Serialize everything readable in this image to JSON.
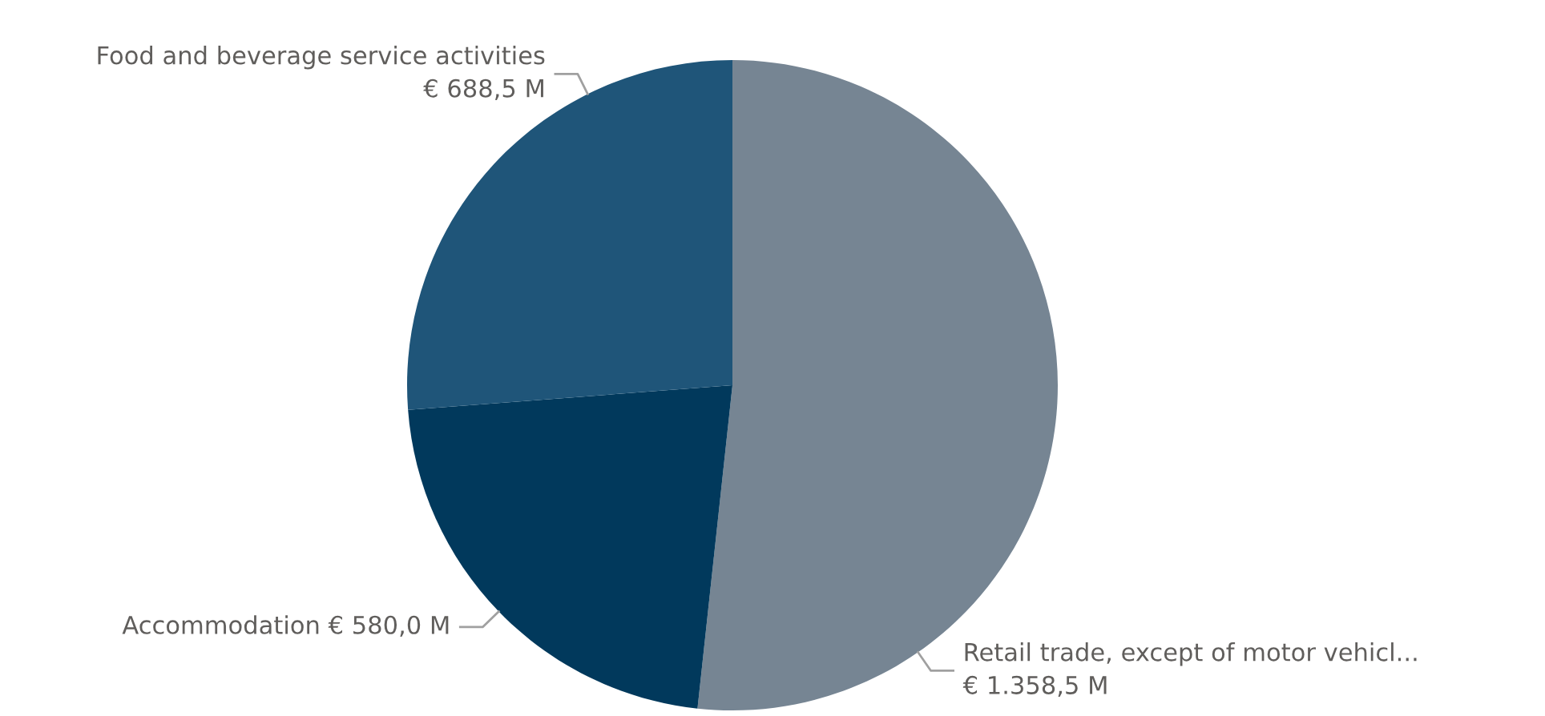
{
  "chart_data": {
    "type": "pie",
    "categories": [
      "Retail trade, except of motor vehicl...",
      "Accommodation",
      "Food and beverage service activities"
    ],
    "values": [
      1358.5,
      580.0,
      688.5
    ],
    "colors": [
      "#768593",
      "#01395c",
      "#1f5579"
    ],
    "value_labels": [
      "€ 1.358,5 M",
      "€ 580,0 M",
      "€ 688,5 M"
    ],
    "legend": false
  }
}
